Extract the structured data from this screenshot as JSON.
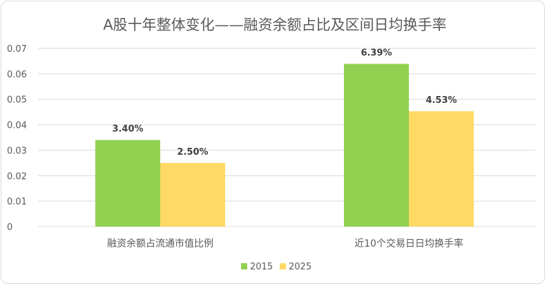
{
  "chart_data": {
    "type": "bar",
    "title": "A股十年整体变化——融资余额占比及区间日均换手率",
    "categories": [
      "融资余额占流通市值比例",
      "近10个交易日日均换手率"
    ],
    "series": [
      {
        "name": "2015",
        "values": [
          0.034,
          0.0639
        ],
        "labels": [
          "3.40%",
          "6.39%"
        ],
        "color": "#92d050"
      },
      {
        "name": "2025",
        "values": [
          0.025,
          0.0453
        ],
        "labels": [
          "2.50%",
          "4.53%"
        ],
        "color": "#ffd966"
      }
    ],
    "yticks": [
      "0",
      "0.01",
      "0.02",
      "0.03",
      "0.04",
      "0.05",
      "0.06",
      "0.07"
    ],
    "ylim": [
      0,
      0.07
    ],
    "xlabel": "",
    "ylabel": "",
    "grid": true,
    "legend": "bottom"
  }
}
